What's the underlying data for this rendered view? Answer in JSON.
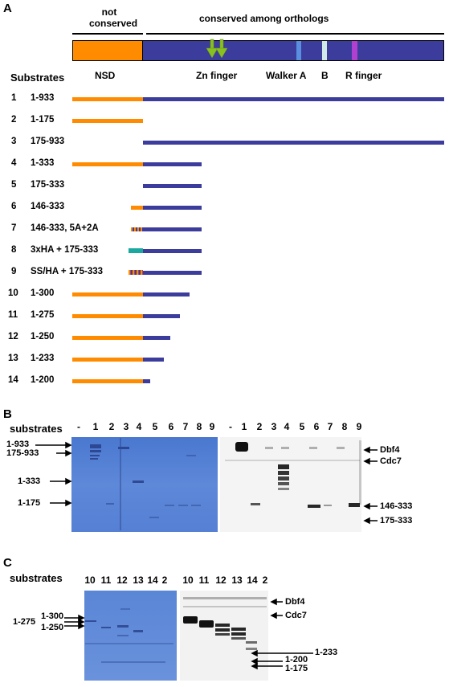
{
  "panelA": {
    "letter": "A",
    "not_conserved": "not\nconserved",
    "not_conserved_l1": "not",
    "not_conserved_l2": "conserved",
    "conserved": "conserved among orthologs",
    "substrates_header": "Substrates",
    "domain_labels": {
      "nsd": "NSD",
      "zn": "Zn finger",
      "walker_a": "Walker A",
      "b": "B",
      "r": "R finger"
    },
    "colors": {
      "nsd": "#ff8c00",
      "conserved": "#3c3c9c",
      "walkerA": "#5a8ee0",
      "B": "#cfe8e8",
      "R": "#b040d0",
      "zn_arrow": "#88c020",
      "tag": "#1aa8a0"
    },
    "substrates": [
      {
        "num": "1",
        "name": "1-933"
      },
      {
        "num": "2",
        "name": "1-175"
      },
      {
        "num": "3",
        "name": "175-933"
      },
      {
        "num": "4",
        "name": "1-333"
      },
      {
        "num": "5",
        "name": "175-333"
      },
      {
        "num": "6",
        "name": "146-333"
      },
      {
        "num": "7",
        "name": "146-333, 5A+2A"
      },
      {
        "num": "8",
        "name": "3xHA + 175-333"
      },
      {
        "num": "9",
        "name": "SS/HA + 175-333"
      },
      {
        "num": "10",
        "name": "1-300"
      },
      {
        "num": "11",
        "name": "1-275"
      },
      {
        "num": "12",
        "name": "1-250"
      },
      {
        "num": "13",
        "name": "1-233"
      },
      {
        "num": "14",
        "name": "1-200"
      }
    ]
  },
  "panelB": {
    "letter": "B",
    "substrates_label": "substrates",
    "lanes": [
      "-",
      "1",
      "2",
      "3",
      "4",
      "5",
      "6",
      "7",
      "8",
      "9"
    ],
    "left_markers": [
      "1-933",
      "175-933",
      "1-333",
      "1-175"
    ],
    "right_markers": [
      "Dbf4",
      "Cdc7",
      "146-333",
      "175-333"
    ]
  },
  "panelC": {
    "letter": "C",
    "substrates_label": "substrates",
    "lanes": [
      "10",
      "11",
      "12",
      "13",
      "14",
      "2"
    ],
    "left_markers": [
      "1-300",
      "1-275",
      "1-250"
    ],
    "right_markers": [
      "Dbf4",
      "Cdc7",
      "1-233",
      "1-200",
      "1-175"
    ]
  }
}
